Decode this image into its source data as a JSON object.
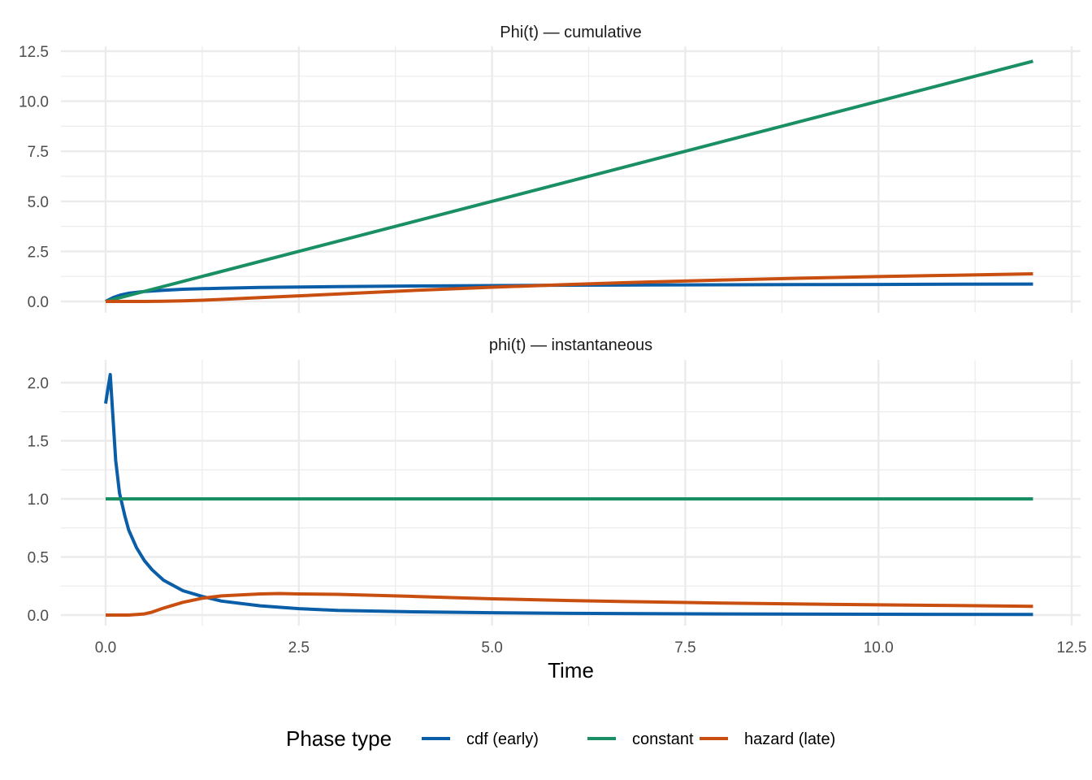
{
  "chart_data": {
    "type": "line",
    "xlabel": "Time",
    "xlim": [
      -2.5,
      12.5
    ],
    "x_ticks": [
      "0.0",
      "2.5",
      "5.0",
      "7.5",
      "10.0",
      "12.5"
    ],
    "grid": true,
    "legend": {
      "position": "bottom",
      "title": "Phase type",
      "entries": [
        "cdf (early)",
        "constant",
        "hazard (late)"
      ]
    },
    "colors": {
      "cdf (early)": "#0a5ea8",
      "constant": "#1a8f64",
      "hazard (late)": "#c94f10",
      "grid": "#ebebeb"
    },
    "panels": [
      {
        "title": "Phi(t) — cumulative",
        "ylim": [
          -0.3,
          12.9
        ],
        "y_ticks": [
          "0.0",
          "2.5",
          "5.0",
          "7.5",
          "10.0",
          "12.5"
        ],
        "series": [
          {
            "name": "cdf (early)",
            "x": [
              0,
              0.05,
              0.1,
              0.2,
              0.3,
              0.5,
              0.75,
              1,
              1.5,
              2,
              3,
              4,
              5,
              6,
              7,
              8,
              9,
              10,
              11,
              12
            ],
            "y": [
              0,
              0.1,
              0.2,
              0.33,
              0.41,
              0.5,
              0.56,
              0.61,
              0.66,
              0.7,
              0.74,
              0.77,
              0.79,
              0.81,
              0.82,
              0.83,
              0.84,
              0.85,
              0.86,
              0.87
            ]
          },
          {
            "name": "constant",
            "x": [
              0,
              12
            ],
            "y": [
              0,
              12
            ]
          },
          {
            "name": "hazard (late)",
            "x": [
              0,
              0.25,
              0.5,
              0.75,
              1,
              1.25,
              1.5,
              2,
              2.5,
              3,
              4,
              5,
              6,
              7,
              8,
              9,
              10,
              11,
              12
            ],
            "y": [
              0,
              0,
              0,
              0.01,
              0.03,
              0.06,
              0.1,
              0.19,
              0.28,
              0.37,
              0.55,
              0.71,
              0.85,
              0.97,
              1.07,
              1.16,
              1.24,
              1.31,
              1.38
            ]
          }
        ]
      },
      {
        "title": "phi(t) — instantaneous",
        "ylim": [
          -0.1,
          2.2
        ],
        "y_ticks": [
          "0.0",
          "0.5",
          "1.0",
          "1.5",
          "2.0"
        ],
        "series": [
          {
            "name": "cdf (early)",
            "x": [
              0,
              0.03,
              0.06,
              0.09,
              0.13,
              0.18,
              0.25,
              0.3,
              0.4,
              0.5,
              0.6,
              0.75,
              1,
              1.25,
              1.5,
              2,
              2.5,
              3,
              4,
              5,
              6,
              8,
              10,
              12
            ],
            "y": [
              1.82,
              1.95,
              2.07,
              1.75,
              1.33,
              1.05,
              0.85,
              0.73,
              0.58,
              0.47,
              0.39,
              0.3,
              0.21,
              0.16,
              0.12,
              0.08,
              0.055,
              0.04,
              0.028,
              0.02,
              0.015,
              0.01,
              0.007,
              0.005
            ]
          },
          {
            "name": "constant",
            "x": [
              0,
              12
            ],
            "y": [
              1,
              1
            ]
          },
          {
            "name": "hazard (late)",
            "x": [
              0,
              0.3,
              0.5,
              0.6,
              0.75,
              1,
              1.25,
              1.5,
              2,
              2.25,
              2.5,
              3,
              4,
              5,
              6,
              7,
              8,
              9,
              10,
              11,
              12
            ],
            "y": [
              0,
              0,
              0.01,
              0.025,
              0.06,
              0.11,
              0.145,
              0.165,
              0.182,
              0.185,
              0.182,
              0.178,
              0.16,
              0.14,
              0.125,
              0.113,
              0.103,
              0.095,
              0.088,
              0.082,
              0.075
            ]
          }
        ]
      }
    ]
  }
}
